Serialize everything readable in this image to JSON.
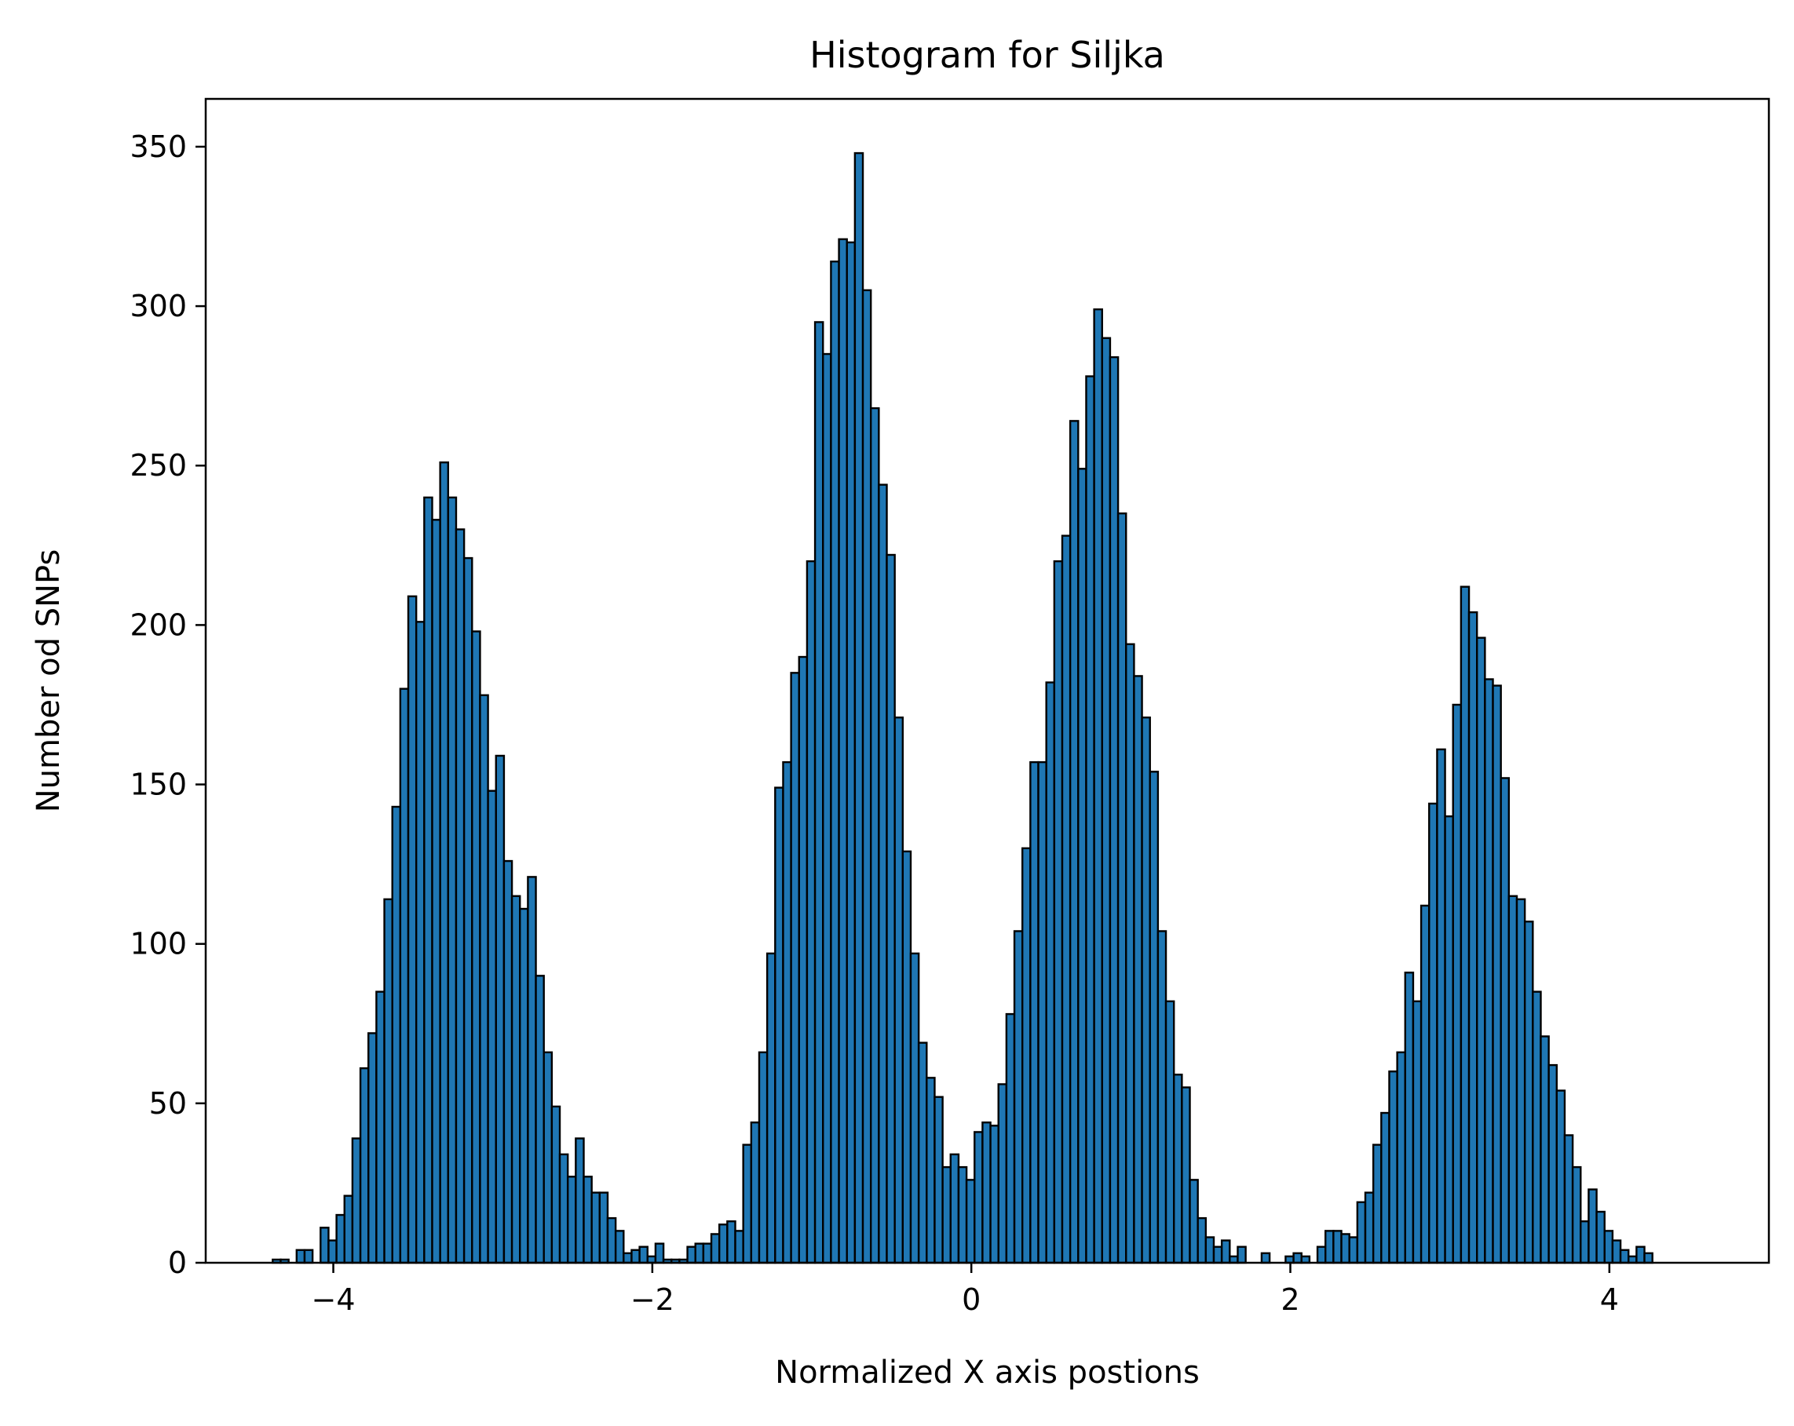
{
  "chart_data": {
    "type": "bar",
    "subtype": "histogram",
    "title": "Histogram for Siljka",
    "xlabel": "Normalized X axis postions",
    "ylabel": "Number od SNPs",
    "xlim": [
      -4.8,
      5.0
    ],
    "ylim": [
      0,
      365
    ],
    "xticks": [
      -4,
      -2,
      0,
      2,
      4
    ],
    "xtick_labels": [
      "−4",
      "−2",
      "0",
      "2",
      "4"
    ],
    "yticks": [
      0,
      50,
      100,
      150,
      200,
      250,
      300,
      350
    ],
    "ytick_labels": [
      "0",
      "50",
      "100",
      "150",
      "200",
      "250",
      "300",
      "350"
    ],
    "grid": false,
    "bar_color": "#1f77b4",
    "edge_color": "#000000",
    "bin_start": -4.38,
    "bin_width": 0.05,
    "values": [
      1,
      1,
      0,
      4,
      4,
      0,
      11,
      7,
      15,
      21,
      39,
      61,
      72,
      85,
      114,
      143,
      180,
      209,
      201,
      240,
      233,
      251,
      240,
      230,
      221,
      198,
      178,
      148,
      159,
      126,
      115,
      111,
      121,
      90,
      66,
      49,
      34,
      27,
      39,
      27,
      22,
      22,
      14,
      10,
      3,
      4,
      5,
      2,
      6,
      1,
      1,
      1,
      5,
      6,
      6,
      9,
      12,
      13,
      10,
      37,
      44,
      66,
      97,
      149,
      157,
      185,
      190,
      220,
      295,
      285,
      314,
      321,
      320,
      348,
      305,
      268,
      244,
      222,
      171,
      129,
      97,
      69,
      58,
      52,
      30,
      34,
      30,
      26,
      41,
      44,
      43,
      56,
      78,
      104,
      130,
      157,
      157,
      182,
      220,
      228,
      264,
      249,
      278,
      299,
      290,
      284,
      235,
      194,
      184,
      171,
      154,
      104,
      82,
      59,
      55,
      26,
      14,
      8,
      5,
      7,
      2,
      5,
      0,
      0,
      3,
      0,
      0,
      2,
      3,
      2,
      0,
      5,
      10,
      10,
      9,
      8,
      19,
      22,
      37,
      47,
      60,
      66,
      91,
      82,
      112,
      144,
      161,
      140,
      175,
      212,
      204,
      196,
      183,
      181,
      152,
      115,
      114,
      107,
      85,
      71,
      62,
      54,
      40,
      30,
      13,
      23,
      16,
      10,
      7,
      4,
      2,
      5,
      3
    ]
  }
}
